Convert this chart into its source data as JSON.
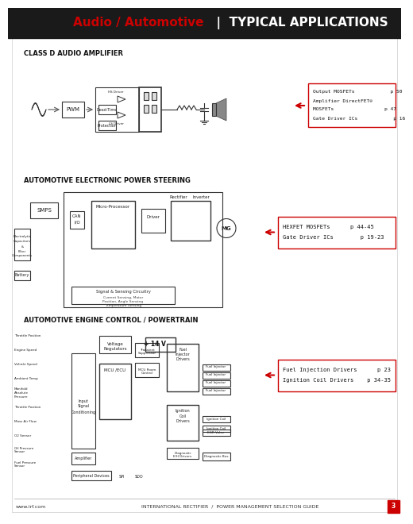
{
  "title_red": "Audio / Automotive",
  "title_white": "  |  TYPICAL APPLICATIONS",
  "header_bg": "#1a1a1a",
  "page_bg": "#ffffff",
  "section1_title": "CLASS D AUDIO AMPLIFIER",
  "section2_title": "AUTOMOTIVE ELECTRONIC POWER STEERING",
  "section3_title": "AUTOMOTIVE ENGINE CONTROL / POWERTRAIN",
  "box1_lines": [
    "Output MOSFETs            p 50",
    "Amplifier DirectFET®",
    "MOSFETs                 p 47",
    "Gate Driver ICs            p 16"
  ],
  "box2_lines": [
    "HEXFET MOSFETs      p 44-45",
    "Gate Driver ICs        p 19-23"
  ],
  "box3_lines": [
    "Fuel Injection Drivers      p 23",
    "Ignition Coil Drivers    p 34-35"
  ],
  "footer_left": "www.irf.com",
  "footer_center": "INTERNATIONAL RECTIFIER  /  POWER MANAGEMENT SELECTION GUIDE",
  "footer_page": "3",
  "accent_red": "#cc0000"
}
